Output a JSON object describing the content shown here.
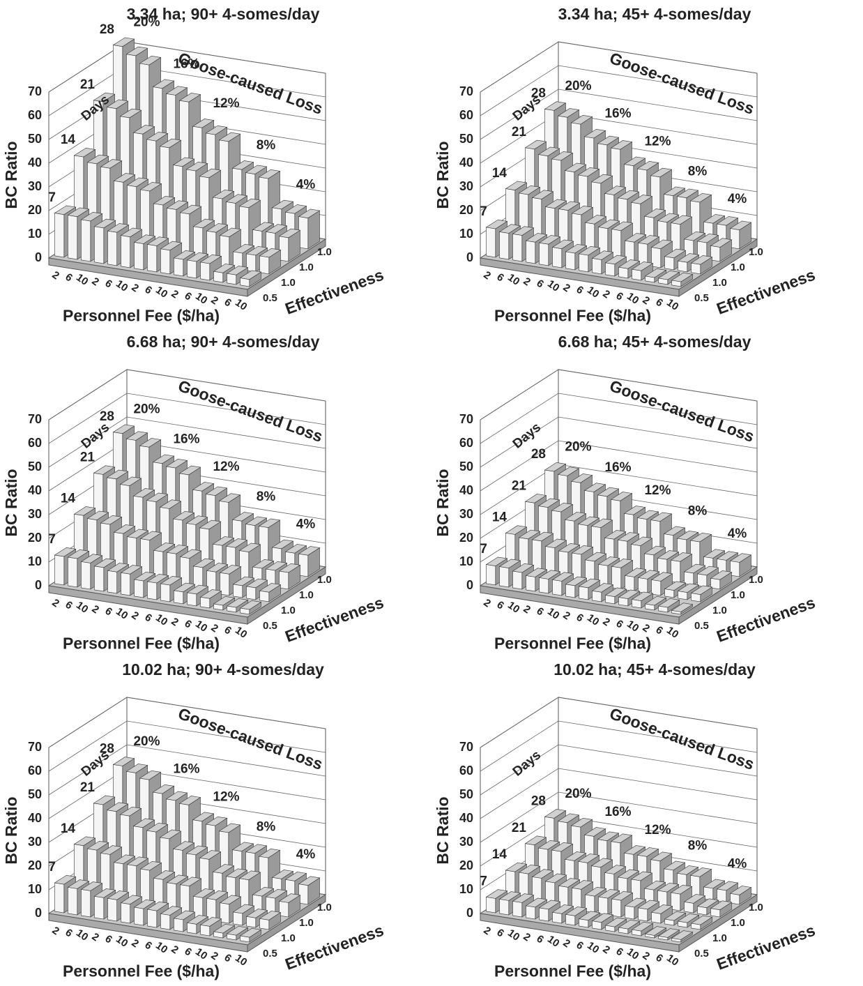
{
  "chart_data": [
    {
      "type": "bar3d",
      "title": "3.34 ha; 90+ 4-somes/day",
      "ylabel": "BC Ratio",
      "xlabel": "Personnel Fee ($/ha)",
      "zlabel": "Effectiveness",
      "days_label": "Days",
      "loss_label": "Goose-caused Loss",
      "loss_groups": [
        "20%",
        "16%",
        "12%",
        "8%",
        "4%"
      ],
      "categories": [
        2,
        6,
        10,
        2,
        6,
        10,
        2,
        6,
        10,
        2,
        6,
        10,
        2,
        6,
        10
      ],
      "effectiveness": [
        "0.5",
        "1.0",
        "1.0",
        "1.0"
      ],
      "ylim": [
        0,
        70
      ],
      "yticks": [
        0,
        10,
        20,
        30,
        40,
        50,
        60,
        70
      ],
      "series": [
        {
          "name": "7",
          "values": [
            18,
            18,
            17,
            15,
            14,
            13,
            11,
            11,
            10,
            7,
            7,
            7,
            4,
            4,
            3
          ]
        },
        {
          "name": "14",
          "values": [
            37,
            35,
            34,
            29,
            28,
            27,
            22,
            21,
            20,
            15,
            14,
            13,
            7,
            7,
            7
          ]
        },
        {
          "name": "21",
          "values": [
            55,
            53,
            50,
            44,
            42,
            40,
            33,
            32,
            30,
            22,
            21,
            20,
            11,
            11,
            10
          ]
        },
        {
          "name": "28",
          "values": [
            73,
            70,
            67,
            58,
            56,
            54,
            44,
            42,
            40,
            29,
            28,
            27,
            15,
            14,
            13
          ]
        }
      ]
    },
    {
      "type": "bar3d",
      "title": "3.34 ha; 45+ 4-somes/day",
      "ylabel": "BC Ratio",
      "xlabel": "Personnel Fee ($/ha)",
      "zlabel": "Effectiveness",
      "days_label": "Days",
      "loss_label": "Goose-caused Loss",
      "loss_groups": [
        "20%",
        "16%",
        "12%",
        "8%",
        "4%"
      ],
      "categories": [
        2,
        6,
        10,
        2,
        6,
        10,
        2,
        6,
        10,
        2,
        6,
        10,
        2,
        6,
        10
      ],
      "effectiveness": [
        "0.5",
        "1.0",
        "1.0",
        "1.0"
      ],
      "ylim": [
        0,
        70
      ],
      "yticks": [
        0,
        10,
        20,
        30,
        40,
        50,
        60,
        70
      ],
      "series": [
        {
          "name": "7",
          "values": [
            12,
            11,
            11,
            9,
            9,
            8,
            7,
            7,
            6,
            5,
            4,
            4,
            2,
            2,
            2
          ]
        },
        {
          "name": "14",
          "values": [
            23,
            22,
            21,
            18,
            18,
            17,
            14,
            13,
            13,
            9,
            9,
            8,
            5,
            4,
            4
          ]
        },
        {
          "name": "21",
          "values": [
            35,
            33,
            32,
            28,
            27,
            25,
            21,
            20,
            19,
            14,
            13,
            13,
            7,
            7,
            6
          ]
        },
        {
          "name": "28",
          "values": [
            46,
            44,
            42,
            37,
            35,
            34,
            28,
            27,
            25,
            18,
            18,
            17,
            9,
            9,
            8
          ]
        }
      ]
    },
    {
      "type": "bar3d",
      "title": "6.68 ha; 90+ 4-somes/day",
      "ylabel": "BC Ratio",
      "xlabel": "Personnel Fee ($/ha)",
      "zlabel": "Effectiveness",
      "days_label": "Days",
      "loss_label": "Goose-caused Loss",
      "loss_groups": [
        "20%",
        "16%",
        "12%",
        "8%",
        "4%"
      ],
      "categories": [
        2,
        6,
        10,
        2,
        6,
        10,
        2,
        6,
        10,
        2,
        6,
        10,
        2,
        6,
        10
      ],
      "effectiveness": [
        "0.5",
        "1.0",
        "1.0",
        "1.0"
      ],
      "ylim": [
        0,
        70
      ],
      "yticks": [
        0,
        10,
        20,
        30,
        40,
        50,
        60,
        70
      ],
      "series": [
        {
          "name": "7",
          "values": [
            12,
            12,
            11,
            10,
            9,
            9,
            7,
            7,
            7,
            5,
            5,
            4,
            2,
            2,
            2
          ]
        },
        {
          "name": "14",
          "values": [
            24,
            23,
            22,
            19,
            18,
            18,
            14,
            14,
            13,
            10,
            9,
            9,
            5,
            5,
            4
          ]
        },
        {
          "name": "21",
          "values": [
            36,
            35,
            33,
            29,
            28,
            26,
            22,
            21,
            20,
            14,
            14,
            13,
            7,
            7,
            7
          ]
        },
        {
          "name": "28",
          "values": [
            48,
            46,
            44,
            38,
            37,
            35,
            29,
            28,
            26,
            19,
            18,
            18,
            10,
            9,
            9
          ]
        }
      ]
    },
    {
      "type": "bar3d",
      "title": "6.68 ha; 45+ 4-somes/day",
      "ylabel": "BC Ratio",
      "xlabel": "Personnel Fee ($/ha)",
      "zlabel": "Effectiveness",
      "days_label": "Days",
      "loss_label": "Goose-caused Loss",
      "loss_groups": [
        "20%",
        "16%",
        "12%",
        "8%",
        "4%"
      ],
      "categories": [
        2,
        6,
        10,
        2,
        6,
        10,
        2,
        6,
        10,
        2,
        6,
        10,
        2,
        6,
        10
      ],
      "effectiveness": [
        "0.5",
        "1.0",
        "1.0",
        "1.0"
      ],
      "ylim": [
        0,
        70
      ],
      "yticks": [
        0,
        10,
        20,
        30,
        40,
        50,
        60,
        70
      ],
      "series": [
        {
          "name": "7",
          "values": [
            8,
            8,
            7,
            6,
            6,
            6,
            5,
            5,
            4,
            3,
            3,
            3,
            2,
            2,
            1
          ]
        },
        {
          "name": "14",
          "values": [
            16,
            15,
            15,
            13,
            12,
            12,
            10,
            9,
            9,
            6,
            6,
            6,
            3,
            3,
            3
          ]
        },
        {
          "name": "21",
          "values": [
            24,
            23,
            22,
            19,
            18,
            18,
            14,
            14,
            13,
            10,
            9,
            9,
            5,
            5,
            4
          ]
        },
        {
          "name": "28",
          "values": [
            32,
            31,
            29,
            26,
            25,
            24,
            19,
            18,
            18,
            13,
            12,
            12,
            6,
            6,
            6
          ]
        }
      ]
    },
    {
      "type": "bar3d",
      "title": "10.02 ha; 90+ 4-somes/day",
      "ylabel": "BC Ratio",
      "xlabel": "Personnel Fee ($/ha)",
      "zlabel": "Effectiveness",
      "days_label": "Days",
      "loss_label": "Goose-caused Loss",
      "loss_groups": [
        "20%",
        "16%",
        "12%",
        "8%",
        "4%"
      ],
      "categories": [
        2,
        6,
        10,
        2,
        6,
        10,
        2,
        6,
        10,
        2,
        6,
        10,
        2,
        6,
        10
      ],
      "effectiveness": [
        "0.5",
        "1.0",
        "1.0",
        "1.0"
      ],
      "ylim": [
        0,
        70
      ],
      "yticks": [
        0,
        10,
        20,
        30,
        40,
        50,
        60,
        70
      ],
      "series": [
        {
          "name": "7",
          "values": [
            12,
            11,
            11,
            9,
            9,
            8,
            7,
            7,
            6,
            5,
            4,
            4,
            2,
            2,
            2
          ]
        },
        {
          "name": "14",
          "values": [
            23,
            22,
            21,
            18,
            18,
            17,
            14,
            13,
            13,
            9,
            9,
            8,
            5,
            4,
            4
          ]
        },
        {
          "name": "21",
          "values": [
            35,
            33,
            32,
            28,
            27,
            25,
            21,
            20,
            19,
            14,
            13,
            13,
            7,
            7,
            6
          ]
        },
        {
          "name": "28",
          "values": [
            46,
            44,
            42,
            37,
            35,
            34,
            28,
            27,
            25,
            18,
            18,
            17,
            9,
            9,
            8
          ]
        }
      ]
    },
    {
      "type": "bar3d",
      "title": "10.02 ha; 45+ 4-somes/day",
      "ylabel": "BC Ratio",
      "xlabel": "Personnel Fee ($/ha)",
      "zlabel": "Effectiveness",
      "days_label": "Days",
      "loss_label": "Goose-caused Loss",
      "loss_groups": [
        "20%",
        "16%",
        "12%",
        "8%",
        "4%"
      ],
      "categories": [
        2,
        6,
        10,
        2,
        6,
        10,
        2,
        6,
        10,
        2,
        6,
        10,
        2,
        6,
        10
      ],
      "effectiveness": [
        "0.5",
        "1.0",
        "1.0",
        "1.0"
      ],
      "ylim": [
        0,
        70
      ],
      "yticks": [
        0,
        10,
        20,
        30,
        40,
        50,
        60,
        70
      ],
      "series": [
        {
          "name": "7",
          "values": [
            6,
            6,
            6,
            5,
            5,
            4,
            4,
            3,
            3,
            2,
            2,
            2,
            1,
            1,
            1
          ]
        },
        {
          "name": "14",
          "values": [
            12,
            12,
            11,
            10,
            9,
            9,
            7,
            7,
            7,
            5,
            5,
            4,
            2,
            2,
            2
          ]
        },
        {
          "name": "21",
          "values": [
            18,
            17,
            17,
            14,
            14,
            13,
            11,
            10,
            10,
            7,
            7,
            7,
            4,
            3,
            3
          ]
        },
        {
          "name": "28",
          "values": [
            24,
            23,
            22,
            19,
            18,
            18,
            14,
            14,
            13,
            10,
            9,
            9,
            5,
            5,
            4
          ]
        }
      ]
    }
  ]
}
